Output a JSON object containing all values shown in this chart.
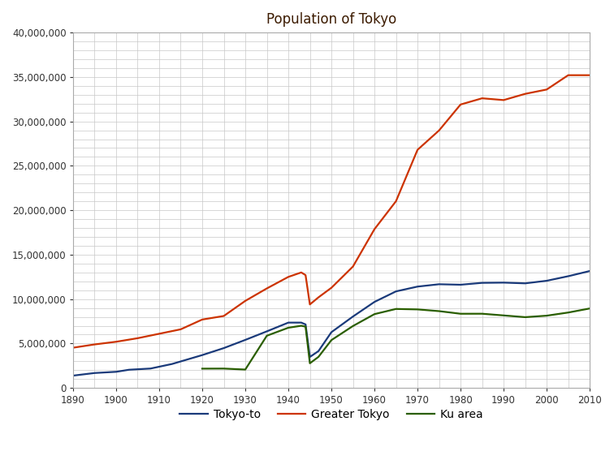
{
  "title": "Population of Tokyo",
  "title_color": "#3d1c02",
  "background_color": "#ffffff",
  "grid_color": "#c8c8c8",
  "xlim": [
    1890,
    2010
  ],
  "ylim": [
    0,
    40000000
  ],
  "yticks": [
    0,
    5000000,
    10000000,
    15000000,
    20000000,
    25000000,
    30000000,
    35000000,
    40000000
  ],
  "xticks": [
    1890,
    1900,
    1910,
    1920,
    1930,
    1940,
    1950,
    1960,
    1970,
    1980,
    1990,
    2000,
    2010
  ],
  "series": {
    "Tokyo-to": {
      "color": "#1a3a7a",
      "linewidth": 1.6,
      "data": {
        "1890": 1389681,
        "1895": 1682400,
        "1900": 1818770,
        "1903": 2050000,
        "1908": 2186079,
        "1913": 2700000,
        "1920": 3699428,
        "1925": 4485144,
        "1930": 5408678,
        "1935": 6369919,
        "1940": 7354971,
        "1943": 7355000,
        "1944": 7150000,
        "1945": 3488284,
        "1947": 4150000,
        "1950": 6277500,
        "1955": 8037084,
        "1960": 9683802,
        "1965": 10869244,
        "1970": 11408071,
        "1975": 11673554,
        "1980": 11618281,
        "1985": 11829363,
        "1990": 11855563,
        "1995": 11773605,
        "2000": 12064101,
        "2005": 12576601,
        "2010": 13159388
      }
    },
    "Greater Tokyo": {
      "color": "#cc3300",
      "linewidth": 1.6,
      "data": {
        "1890": 4530000,
        "1895": 4900000,
        "1900": 5200000,
        "1905": 5600000,
        "1910": 6100000,
        "1915": 6600000,
        "1920": 7700000,
        "1925": 8100000,
        "1930": 9800000,
        "1935": 11200000,
        "1940": 12500000,
        "1943": 13000000,
        "1944": 12700000,
        "1945": 9400000,
        "1947": 10200000,
        "1950": 11274641,
        "1955": 13662000,
        "1960": 17869000,
        "1965": 21017000,
        "1970": 26800000,
        "1975": 28980000,
        "1980": 31900000,
        "1985": 32600000,
        "1990": 32400000,
        "1995": 33100000,
        "2000": 33587000,
        "2005": 35200000,
        "2010": 35200000
      }
    },
    "Ku area": {
      "color": "#2a5e00",
      "linewidth": 1.6,
      "data": {
        "1920": 2173201,
        "1925": 2182098,
        "1930": 2070913,
        "1935": 5875667,
        "1940": 6778804,
        "1943": 7000000,
        "1944": 6900000,
        "1945": 2777010,
        "1947": 3500000,
        "1950": 5385071,
        "1955": 6969104,
        "1960": 8310027,
        "1965": 8893094,
        "1970": 8840942,
        "1975": 8646520,
        "1980": 8351893,
        "1985": 8354615,
        "1990": 8163573,
        "1995": 7967615,
        "2000": 8134688,
        "2005": 8489653,
        "2010": 8945695
      }
    }
  },
  "legend": {
    "entries": [
      "Tokyo-to",
      "Greater Tokyo",
      "Ku area"
    ],
    "colors": [
      "#1a3a7a",
      "#cc3300",
      "#2a5e00"
    ],
    "ncol": 3,
    "fontsize": 10
  }
}
